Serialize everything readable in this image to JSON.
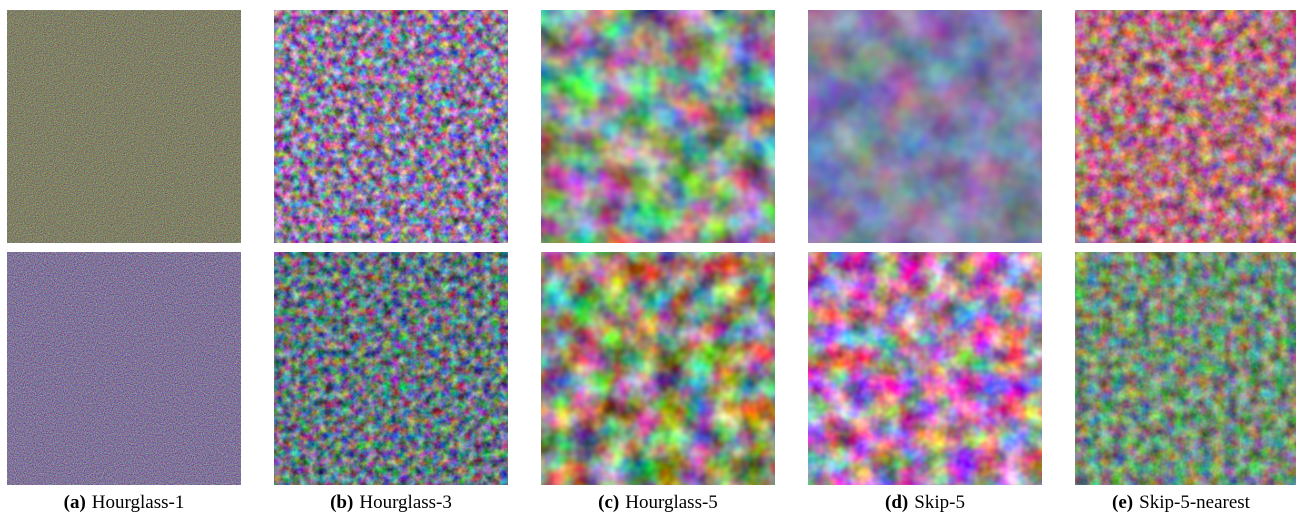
{
  "panels": [
    {
      "label": "(a)",
      "caption": "Hourglass-1"
    },
    {
      "label": "(b)",
      "caption": "Hourglass-3"
    },
    {
      "label": "(c)",
      "caption": "Hourglass-5"
    },
    {
      "label": "(d)",
      "caption": "Skip-5"
    },
    {
      "label": "(e)",
      "caption": "Skip-5-nearest"
    }
  ]
}
